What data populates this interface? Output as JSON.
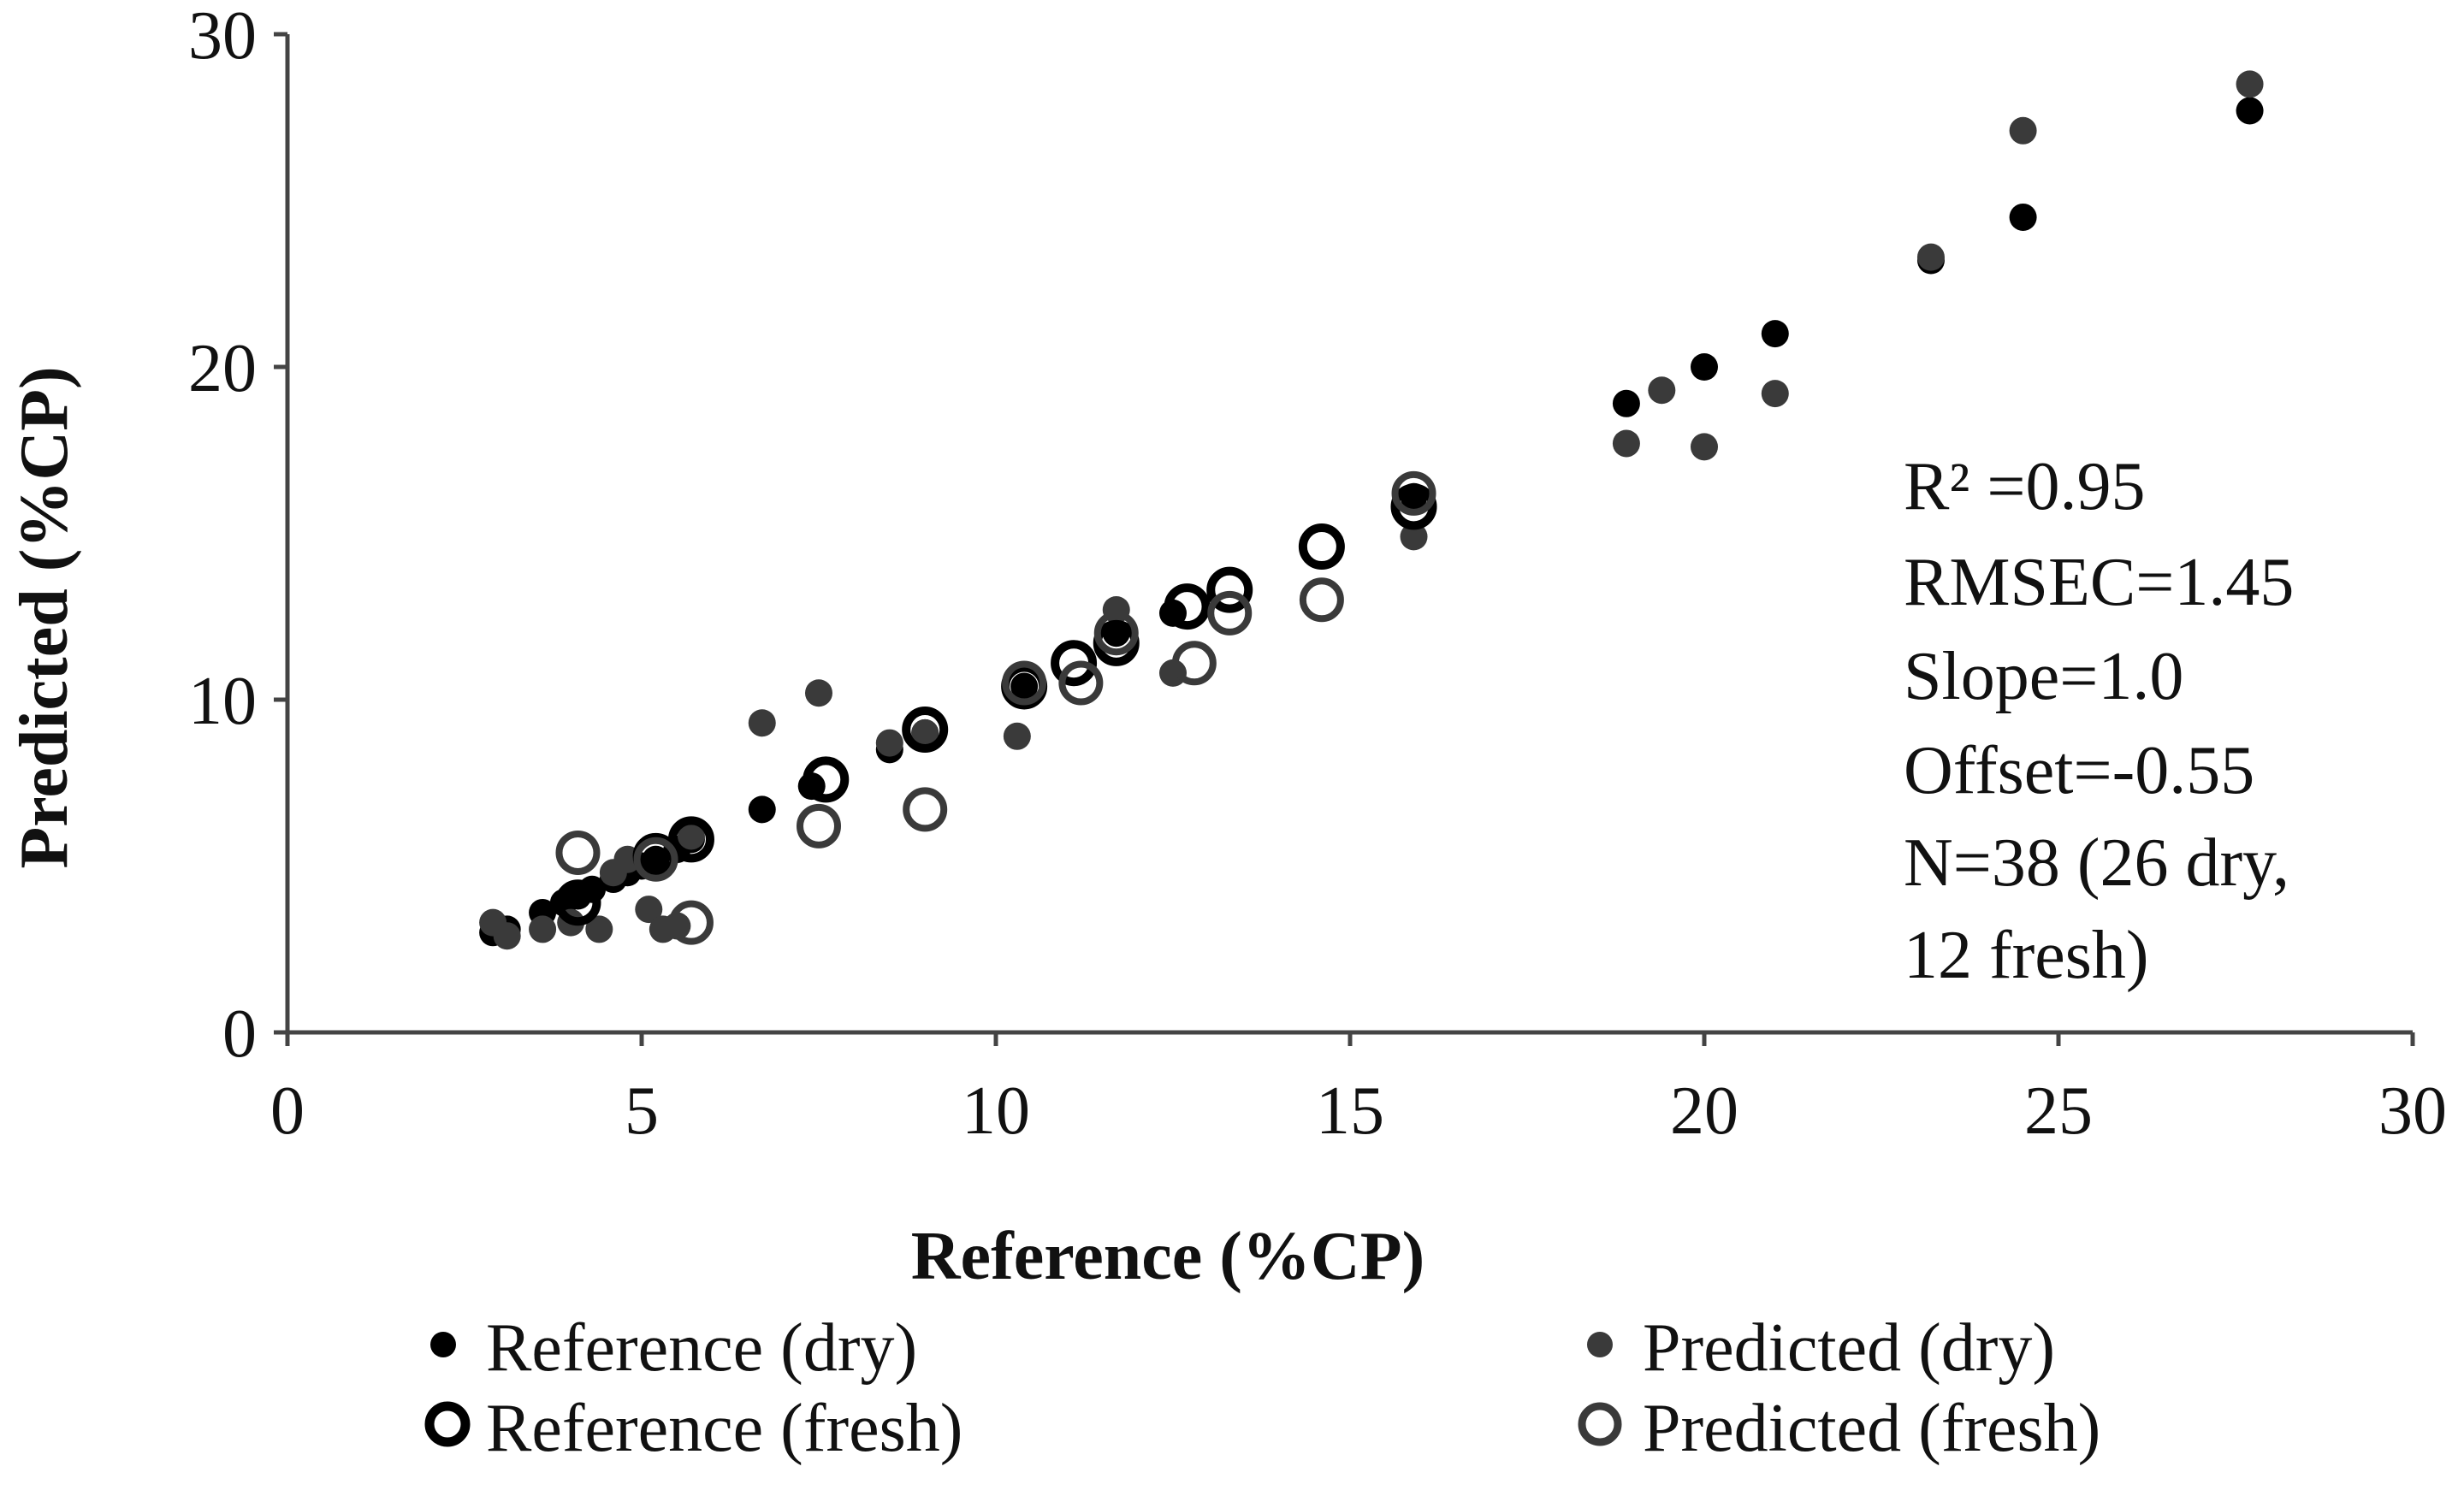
{
  "chart_data": {
    "type": "scatter",
    "xlabel": "Reference (%CP)",
    "ylabel": "Predicted (%CP)",
    "xlim": [
      0,
      30
    ],
    "ylim": [
      0,
      30
    ],
    "xticks": [
      0,
      5,
      10,
      15,
      20,
      25,
      30
    ],
    "yticks": [
      0,
      10,
      20,
      30
    ],
    "x_tick_labels": [
      "0",
      "5",
      "10",
      "15",
      "20",
      "25",
      "30"
    ],
    "y_tick_labels": [
      "0",
      "10",
      "20",
      "30"
    ],
    "grid": false,
    "legend_position": "bottom",
    "colors": {
      "reference": "#000000",
      "predicted": "#3a3a3a"
    },
    "stats_lines": [
      "R² =0.95",
      "RMSEC=1.45",
      "Slope=1.0",
      "Offset=-0.55",
      "N=38 (26 dry,",
      "12 fresh)"
    ],
    "series": [
      {
        "name": "Reference (dry)",
        "marker": "filled",
        "color": "#000000",
        "x": [
          2.9,
          3.1,
          3.6,
          3.9,
          4.1,
          4.3,
          4.6,
          4.8,
          5.0,
          5.2,
          5.5,
          6.7,
          7.4,
          8.5,
          10.4,
          11.7,
          12.5,
          15.9,
          18.9,
          20.0,
          21.0,
          23.2,
          24.5,
          27.7,
          5.7,
          9.0
        ],
        "y": [
          3.0,
          3.1,
          3.6,
          3.9,
          4.1,
          4.3,
          4.6,
          4.8,
          5.0,
          5.2,
          5.5,
          6.7,
          7.4,
          8.5,
          10.4,
          12.0,
          12.6,
          16.1,
          18.9,
          20.0,
          21.0,
          23.2,
          24.5,
          27.7,
          5.8,
          9.0
        ]
      },
      {
        "name": "Predicted (dry)",
        "marker": "filled",
        "color": "#3a3a3a",
        "x": [
          2.9,
          3.1,
          3.6,
          4.0,
          4.4,
          4.6,
          4.8,
          5.1,
          5.3,
          6.7,
          7.5,
          8.5,
          10.3,
          11.7,
          12.5,
          15.9,
          18.9,
          19.4,
          20.0,
          21.0,
          23.2,
          24.5,
          27.7,
          5.7,
          9.0,
          5.5
        ],
        "y": [
          3.3,
          2.9,
          3.1,
          3.3,
          3.1,
          4.8,
          5.2,
          3.7,
          3.1,
          9.3,
          10.2,
          8.7,
          8.9,
          12.7,
          10.8,
          14.9,
          17.7,
          19.3,
          17.6,
          19.2,
          23.3,
          27.1,
          28.5,
          5.9,
          9.0,
          3.2
        ]
      },
      {
        "name": "Reference (fresh)",
        "marker": "open",
        "color": "#000000",
        "x": [
          4.1,
          5.7,
          7.6,
          9.0,
          10.4,
          11.1,
          11.7,
          12.7,
          13.3,
          14.6,
          15.9,
          5.2
        ],
        "y": [
          3.9,
          5.8,
          7.6,
          9.1,
          10.4,
          11.1,
          11.7,
          12.8,
          13.3,
          14.6,
          15.8,
          5.3
        ]
      },
      {
        "name": "Predicted (fresh)",
        "marker": "open",
        "color": "#3a3a3a",
        "x": [
          4.1,
          5.2,
          5.7,
          7.5,
          9.0,
          10.4,
          11.2,
          11.7,
          12.8,
          13.3,
          14.6,
          15.9
        ],
        "y": [
          5.4,
          5.2,
          3.3,
          6.2,
          6.7,
          10.5,
          10.5,
          12.0,
          11.1,
          12.6,
          13.0,
          16.2
        ]
      }
    ]
  }
}
